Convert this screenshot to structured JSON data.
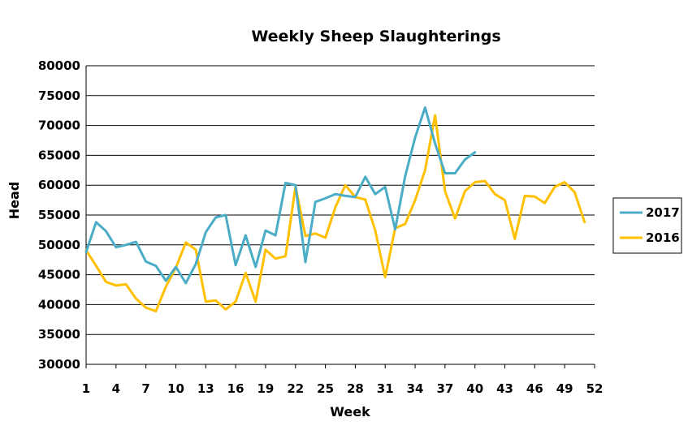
{
  "chart_data": {
    "type": "line",
    "title": "Weekly Sheep Slaughterings",
    "xlabel": "Week",
    "ylabel": "Head",
    "xlim": [
      1,
      52
    ],
    "ylim": [
      30000,
      80000
    ],
    "ytick_step": 5000,
    "yticks": [
      "30000",
      "35000",
      "40000",
      "45000",
      "50000",
      "55000",
      "60000",
      "65000",
      "70000",
      "75000",
      "80000"
    ],
    "xticks": [
      "1",
      "4",
      "7",
      "10",
      "13",
      "16",
      "19",
      "22",
      "25",
      "28",
      "31",
      "34",
      "37",
      "40",
      "43",
      "46",
      "49",
      "52"
    ],
    "grid": "horizontal",
    "legend": "right",
    "series": [
      {
        "name": "2017",
        "color": "#4bacc6",
        "x": [
          1,
          2,
          3,
          4,
          5,
          6,
          7,
          8,
          9,
          10,
          11,
          12,
          13,
          14,
          15,
          16,
          17,
          18,
          19,
          20,
          21,
          22,
          23,
          24,
          25,
          26,
          27,
          28,
          29,
          30,
          31,
          32,
          33,
          34,
          35,
          36,
          37,
          38,
          39,
          40
        ],
        "values": [
          48800,
          53800,
          52300,
          49600,
          50000,
          50500,
          47200,
          46500,
          44000,
          46300,
          43600,
          46800,
          52100,
          54600,
          55000,
          46600,
          51600,
          46300,
          52400,
          51600,
          60400,
          60000,
          47100,
          57200,
          57800,
          58500,
          58200,
          58000,
          61400,
          58500,
          59700,
          52600,
          61500,
          68000,
          73000,
          67000,
          62000,
          62000,
          64300,
          65500
        ]
      },
      {
        "name": "2016",
        "color": "#ffc000",
        "x": [
          1,
          2,
          3,
          4,
          5,
          6,
          7,
          8,
          9,
          10,
          11,
          12,
          13,
          14,
          15,
          16,
          17,
          18,
          19,
          20,
          21,
          22,
          23,
          24,
          25,
          26,
          27,
          28,
          29,
          30,
          31,
          32,
          33,
          34,
          35,
          36,
          37,
          38,
          39,
          40,
          41,
          42,
          43,
          44,
          45,
          46,
          47,
          48,
          49,
          50,
          51
        ],
        "values": [
          49100,
          46500,
          43800,
          43200,
          43400,
          41000,
          39500,
          38900,
          43000,
          46200,
          50400,
          49200,
          40500,
          40700,
          39200,
          40500,
          45300,
          40500,
          49200,
          47700,
          48100,
          59800,
          51500,
          51900,
          51200,
          56300,
          60000,
          58000,
          57600,
          52400,
          44600,
          52800,
          53500,
          57500,
          62500,
          71700,
          59000,
          54400,
          59000,
          60500,
          60700,
          58500,
          57500,
          51000,
          58200,
          58100,
          57000,
          59700,
          60500,
          58800,
          53800
        ]
      }
    ]
  }
}
